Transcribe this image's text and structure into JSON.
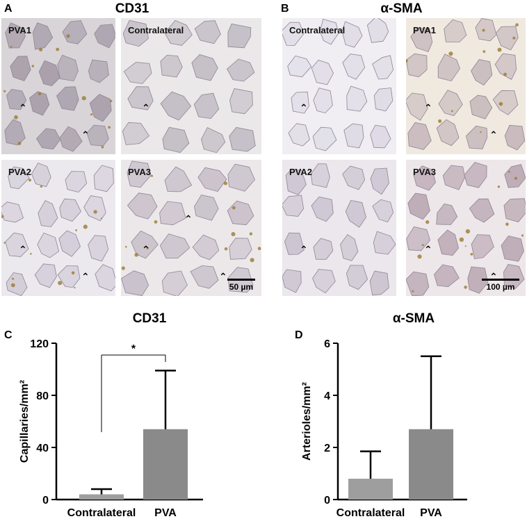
{
  "panels": {
    "A": {
      "letter": "A",
      "title": "CD31",
      "images": [
        {
          "label": "PVA1"
        },
        {
          "label": "Contralateral"
        },
        {
          "label": "PVA2"
        },
        {
          "label": "PVA3"
        }
      ],
      "scale_label": "50 µm"
    },
    "B": {
      "letter": "B",
      "title": "α-SMA",
      "images": [
        {
          "label": "Contralateral"
        },
        {
          "label": "PVA1"
        },
        {
          "label": "PVA2"
        },
        {
          "label": "PVA3"
        }
      ],
      "scale_label": "100 µm"
    },
    "C": {
      "letter": "C"
    },
    "D": {
      "letter": "D"
    }
  },
  "chart_data": [
    {
      "type": "bar",
      "title": "CD31",
      "categories": [
        "Contralateral",
        "PVA"
      ],
      "values": [
        4,
        54
      ],
      "errors": [
        4,
        45
      ],
      "ylabel": "Capillaries/mm²",
      "ylim": [
        0,
        120
      ],
      "yticks": [
        0,
        40,
        80,
        120
      ],
      "significance": {
        "between": [
          "Contralateral",
          "PVA"
        ],
        "label": "*"
      },
      "colors": [
        "#9e9e9e",
        "#8a8a8a"
      ]
    },
    {
      "type": "bar",
      "title": "α-SMA",
      "categories": [
        "Contralateral",
        "PVA"
      ],
      "values": [
        0.8,
        2.7
      ],
      "errors": [
        1.05,
        2.8
      ],
      "ylabel": "Arterioles/mm²",
      "ylim": [
        0,
        6
      ],
      "yticks": [
        0,
        2,
        4,
        6
      ],
      "colors": [
        "#9e9e9e",
        "#8a8a8a"
      ]
    }
  ]
}
